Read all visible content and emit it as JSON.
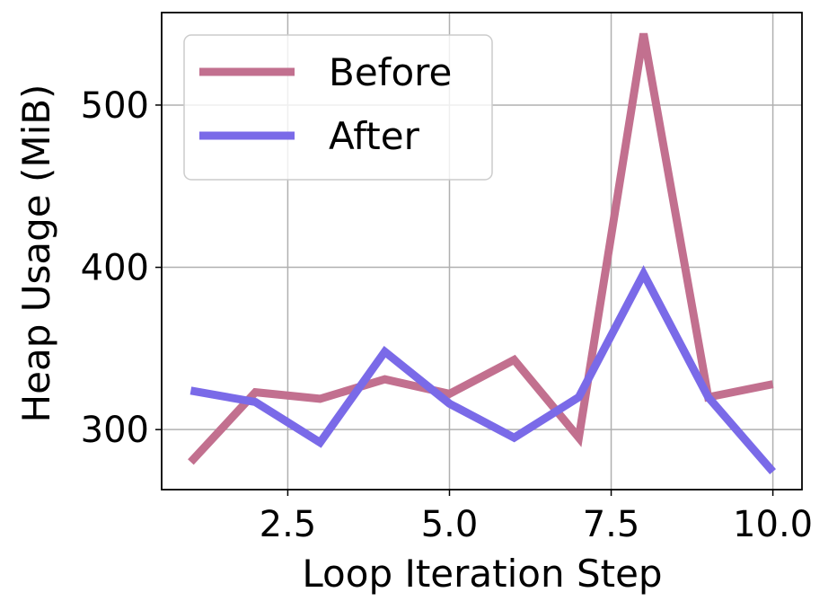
{
  "chart_data": {
    "type": "line",
    "title": "",
    "xlabel": "Loop Iteration Step",
    "ylabel": "Heap Usage (MiB)",
    "xlim": [
      0.55,
      10.45
    ],
    "ylim": [
      263,
      557
    ],
    "xticks": [
      2.5,
      5.0,
      7.5,
      10.0
    ],
    "xtick_labels": [
      "2.5",
      "5.0",
      "7.5",
      "10.0"
    ],
    "yticks": [
      300,
      400,
      500
    ],
    "ytick_labels": [
      "300",
      "400",
      "500"
    ],
    "grid": true,
    "legend_position": "top-left",
    "x": [
      1,
      2,
      3,
      4,
      5,
      6,
      7,
      8,
      9,
      10
    ],
    "series": [
      {
        "name": "Before",
        "color": "#c2708f",
        "values": [
          280,
          323,
          319,
          331,
          322,
          343,
          295,
          544,
          320,
          328
        ]
      },
      {
        "name": "After",
        "color": "#7a6ae8",
        "values": [
          324,
          317,
          292,
          348,
          316,
          295,
          320,
          396,
          320,
          274
        ]
      }
    ]
  }
}
